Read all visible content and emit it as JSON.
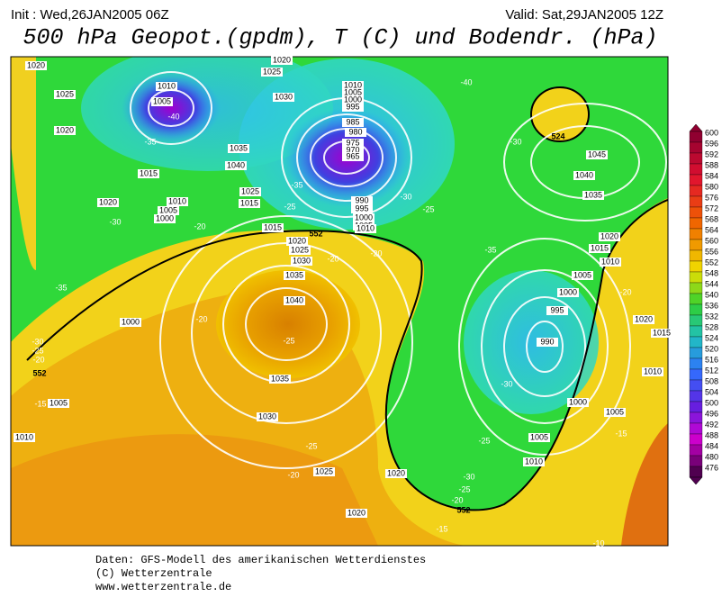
{
  "header": {
    "init": "Init : Wed,26JAN2005 06Z",
    "valid": "Valid: Sat,29JAN2005 12Z",
    "title": "500 hPa Geopot.(gpdm), T (C) und Bodendr. (hPa)"
  },
  "map": {
    "isobar_labels": [
      1020,
      1025,
      1020,
      1010,
      1005,
      1015,
      1010,
      1005,
      1000,
      1020,
      1025,
      1020,
      1030,
      1035,
      1040,
      1025,
      1015,
      1010,
      1005,
      1000,
      995,
      985,
      980,
      975,
      970,
      965,
      990,
      995,
      1000,
      1005,
      1010,
      1015,
      1020,
      1025,
      1030,
      1035,
      1040,
      1035,
      1030,
      1025,
      1020,
      1020,
      1040,
      1045,
      1035,
      1020,
      1015,
      1010,
      1005,
      1000,
      995,
      990,
      1000,
      1005,
      1010,
      1005,
      1010,
      1015,
      1020,
      1000,
      1005,
      1010
    ],
    "temperature_labels": [
      -40,
      -35,
      -35,
      -25,
      -20,
      -20,
      -20,
      -20,
      -25,
      -35,
      -30,
      -30,
      -25,
      -20,
      -15,
      -40,
      -30,
      -30,
      -25,
      -35,
      -30,
      -25,
      -30,
      -25,
      -20,
      -25,
      -20,
      -15,
      -15,
      -20,
      -10
    ],
    "geopotential_labels": [
      552,
      552,
      552,
      524
    ]
  },
  "colorbar": {
    "ticks": [
      600,
      596,
      592,
      588,
      584,
      580,
      576,
      572,
      568,
      564,
      560,
      556,
      552,
      548,
      544,
      540,
      536,
      532,
      528,
      524,
      520,
      516,
      512,
      508,
      504,
      500,
      496,
      492,
      488,
      484,
      480,
      476
    ]
  },
  "footer": {
    "lines": [
      "Daten: GFS-Modell des amerikanischen Wetterdienstes",
      "(C) Wetterzentrale",
      "www.wetterzentrale.de"
    ]
  }
}
